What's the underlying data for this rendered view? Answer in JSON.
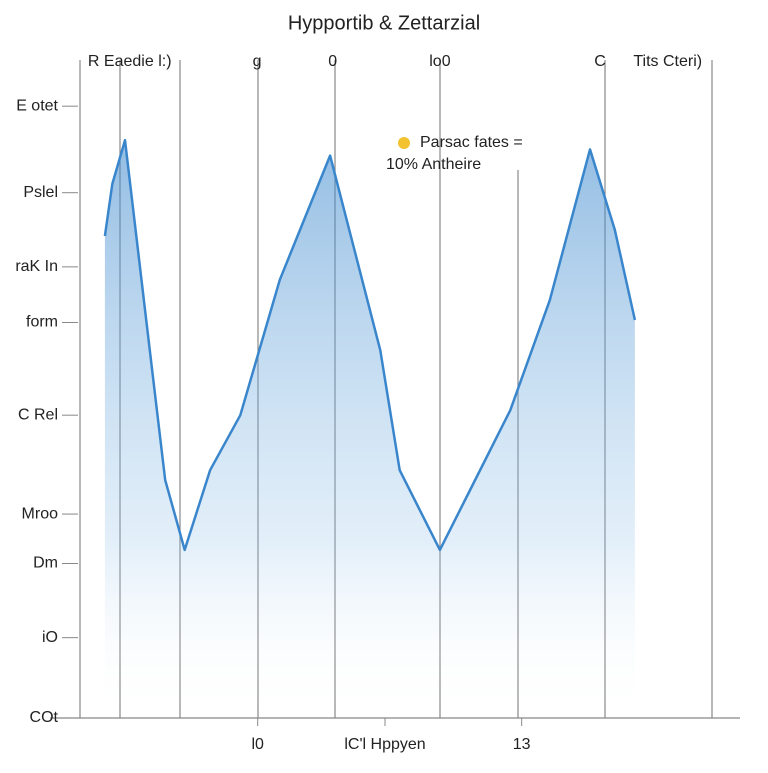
{
  "chart_data": {
    "type": "area",
    "title": "Hypportib & Zettarzial",
    "annotation": [
      "Parsac fates =",
      "10% Antheire"
    ],
    "x": [
      8.2,
      9.3,
      11.2,
      14.9,
      17.2,
      20.1,
      23.9,
      28.4,
      34.3,
      41.8,
      49.3,
      52.2,
      58.2,
      62.7,
      68.7,
      74.6,
      80.6,
      84.3,
      87.3
    ],
    "values": [
      78,
      86.4,
      93.5,
      59.5,
      38.5,
      27.2,
      40.1,
      49,
      70.9,
      91,
      59.5,
      40.1,
      27.2,
      36.9,
      49.8,
      67.6,
      92,
      79,
      64.4
    ],
    "color": "#3a86cc",
    "xlim": [
      0,
      100
    ],
    "ylim": [
      0,
      100
    ],
    "xticks_top": [
      {
        "value": 11.9,
        "label": "R Eaedie l:)"
      },
      {
        "value": 30.9,
        "label": "g"
      },
      {
        "value": 42.2,
        "label": "0"
      },
      {
        "value": 58.2,
        "label": "lo0"
      },
      {
        "value": 82.1,
        "label": "C"
      },
      {
        "value": 92.2,
        "label": "Tits Cteri)"
      }
    ],
    "xticks": [
      {
        "value": 31,
        "label": "l0"
      },
      {
        "value": 50,
        "label": "lC'l Hppyen"
      },
      {
        "value": 70.4,
        "label": "13"
      }
    ],
    "yticks": [
      {
        "value": 99,
        "label": "E otet"
      },
      {
        "value": 85,
        "label": "Pslel"
      },
      {
        "value": 73,
        "label": "raK In"
      },
      {
        "value": 64,
        "label": "form"
      },
      {
        "value": 49,
        "label": "C Rel"
      },
      {
        "value": 33,
        "label": "Mroo"
      },
      {
        "value": 25,
        "label": "Dm"
      },
      {
        "value": 13,
        "label": "iO"
      },
      {
        "value": 0,
        "label": "COt"
      }
    ]
  }
}
